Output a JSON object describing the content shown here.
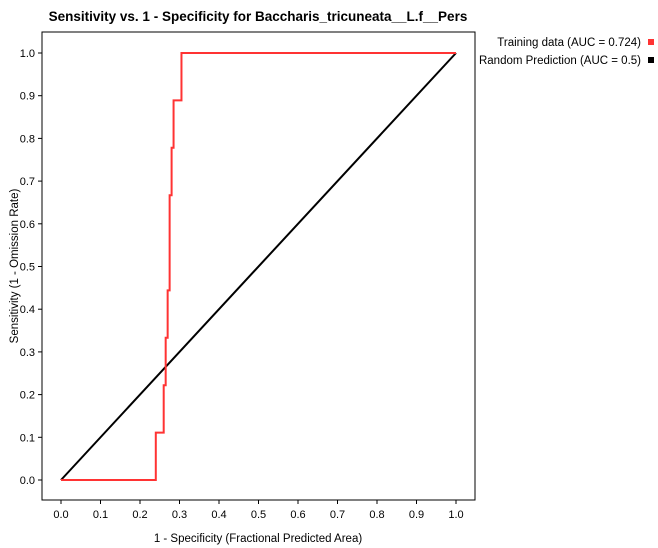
{
  "chart_data": {
    "type": "line",
    "title": "Sensitivity vs. 1 - Specificity for Baccharis_tricuneata__L.f__Pers",
    "xlabel": "1 - Specificity  (Fractional Predicted Area)",
    "ylabel": "Sensitivity  (1 - Omission Rate)",
    "xlim": [
      0,
      1
    ],
    "ylim": [
      0,
      1
    ],
    "x_ticks": [
      "0.0",
      "0.1",
      "0.2",
      "0.3",
      "0.4",
      "0.5",
      "0.6",
      "0.7",
      "0.8",
      "0.9",
      "1.0"
    ],
    "y_ticks": [
      "0.0",
      "0.1",
      "0.2",
      "0.3",
      "0.4",
      "0.5",
      "0.6",
      "0.7",
      "0.8",
      "0.9",
      "1.0"
    ],
    "grid": false,
    "legend_position": "top-right",
    "series": [
      {
        "name": "Training data (AUC = 0.724)",
        "color": "#ff3333",
        "x": [
          0.0,
          0.24,
          0.24,
          0.26,
          0.26,
          0.265,
          0.265,
          0.27,
          0.27,
          0.275,
          0.275,
          0.28,
          0.28,
          0.285,
          0.285,
          0.3,
          0.3,
          0.305,
          0.305,
          1.0
        ],
        "y": [
          0.0,
          0.0,
          0.111,
          0.111,
          0.222,
          0.222,
          0.333,
          0.333,
          0.444,
          0.444,
          0.667,
          0.667,
          0.778,
          0.778,
          0.889,
          0.889,
          0.889,
          0.889,
          1.0,
          1.0
        ]
      },
      {
        "name": "Random Prediction (AUC = 0.5)",
        "color": "#000000",
        "x": [
          0.0,
          1.0
        ],
        "y": [
          0.0,
          1.0
        ]
      }
    ]
  }
}
